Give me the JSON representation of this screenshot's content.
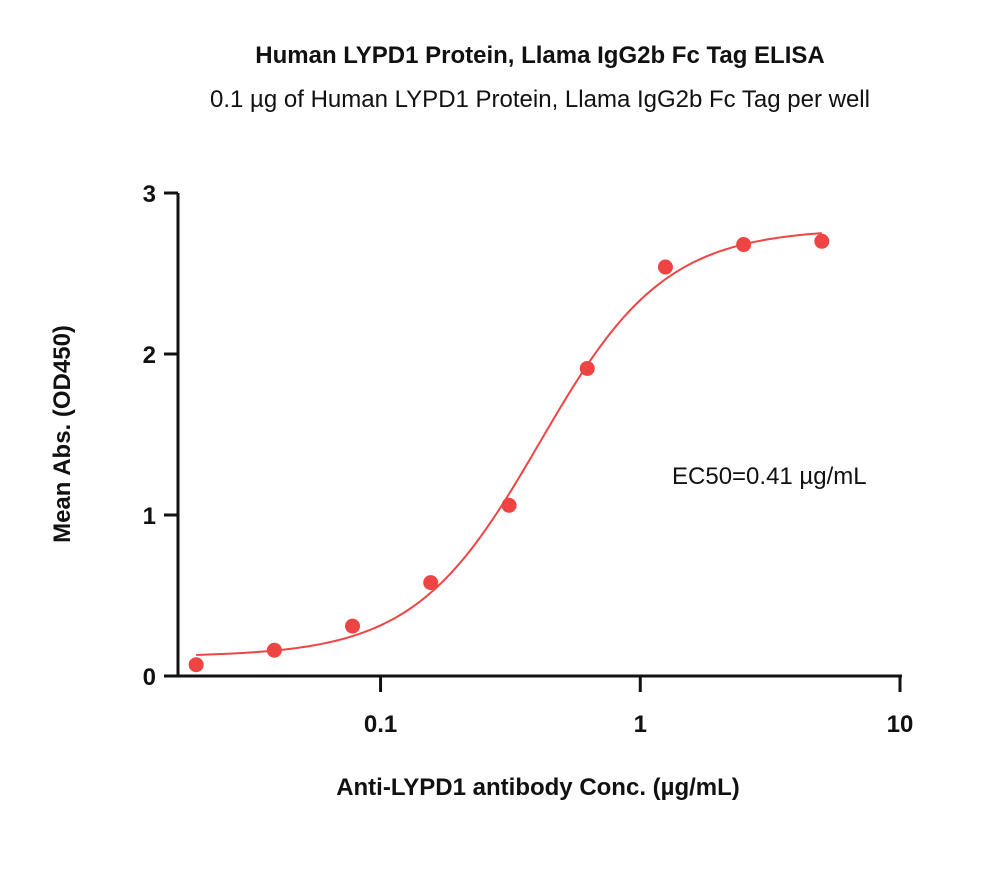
{
  "chart_data": {
    "type": "scatter",
    "title": "Human LYPD1 Protein, Llama IgG2b Fc Tag ELISA",
    "subtitle": "0.1 µg of Human LYPD1 Protein, Llama IgG2b Fc Tag per well",
    "xlabel": "Anti-LYPD1 antibody Conc. (µg/mL)",
    "ylabel": "Mean Abs. (OD450)",
    "x_scale": "log10",
    "xlim": [
      0.0166,
      10
    ],
    "ylim": [
      0,
      3
    ],
    "x_ticks": [
      {
        "value": 0.1,
        "label": "0.1"
      },
      {
        "value": 1,
        "label": "1"
      },
      {
        "value": 10,
        "label": "10"
      }
    ],
    "y_ticks": [
      {
        "value": 0,
        "label": "0"
      },
      {
        "value": 1,
        "label": "1"
      },
      {
        "value": 2,
        "label": "2"
      },
      {
        "value": 3,
        "label": "3"
      }
    ],
    "grid": false,
    "legend": "none",
    "annotation": "EC50=0.41 µg/mL",
    "color": "#ef4444",
    "series": [
      {
        "x": [
          0.0195,
          0.039,
          0.078,
          0.156,
          0.3125,
          0.625,
          1.25,
          2.5,
          5
        ],
        "y": [
          0.07,
          0.16,
          0.31,
          0.58,
          1.06,
          1.91,
          2.54,
          2.68,
          2.7
        ]
      }
    ],
    "fit": {
      "model": "4PL",
      "bottom": 0.12,
      "top": 2.78,
      "ec50": 0.41,
      "hill": 1.8,
      "x_range": [
        0.0195,
        5
      ]
    }
  }
}
